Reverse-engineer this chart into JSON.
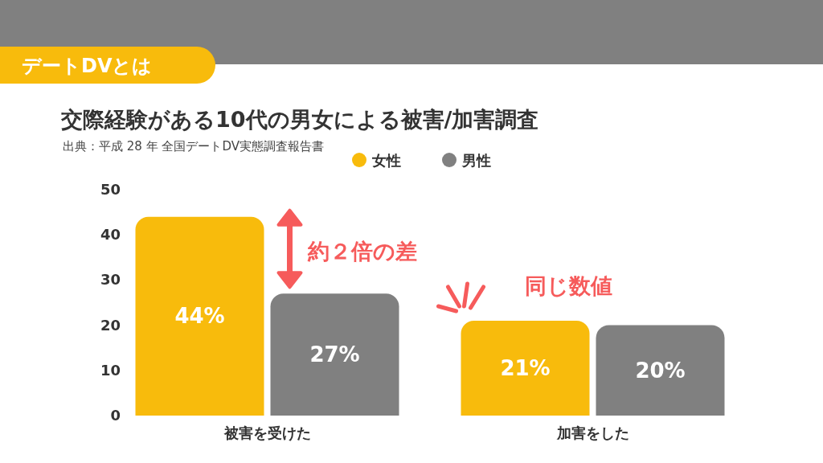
{
  "chart_data": {
    "type": "bar",
    "title": "交際経験がある10代の男女による被害/加害調査",
    "subtitle": "出典：平成 28 年  全国デートDV実態調査報告書",
    "annotations": [
      "デートDVとは",
      "約２倍の差",
      "同じ数値"
    ],
    "categories": [
      "被害を受けた",
      "加害をした"
    ],
    "series": [
      {
        "name": "女性",
        "color": "#f8bb0c",
        "values": [
          44,
          21
        ],
        "value_labels": [
          "44%",
          "21%"
        ]
      },
      {
        "name": "男性",
        "color": "#808080",
        "values": [
          27,
          20
        ],
        "value_labels": [
          "27%",
          "20%"
        ]
      }
    ],
    "ylim": [
      0,
      50
    ],
    "yticks": [
      0,
      10,
      20,
      30,
      40,
      50
    ],
    "legend": "top"
  }
}
